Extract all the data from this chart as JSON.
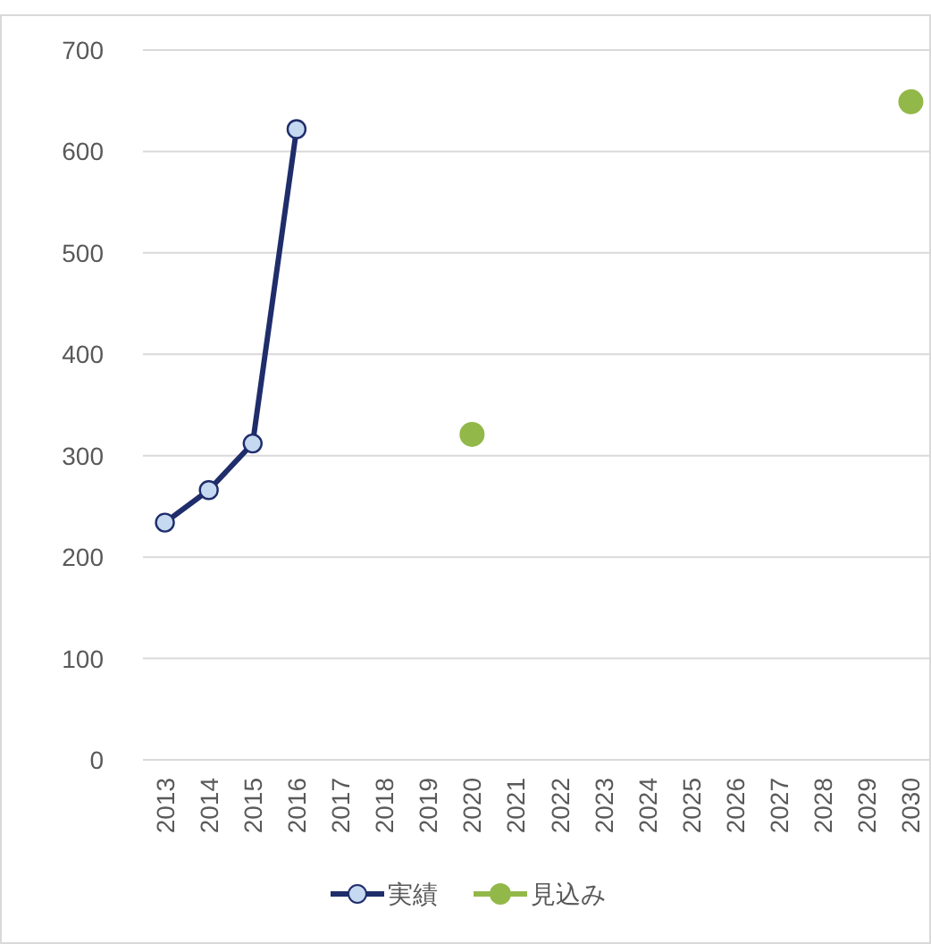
{
  "chart_data": {
    "type": "line",
    "categories": [
      "2013",
      "2014",
      "2015",
      "2016",
      "2017",
      "2018",
      "2019",
      "2020",
      "2021",
      "2022",
      "2023",
      "2024",
      "2025",
      "2026",
      "2027",
      "2028",
      "2029",
      "2030"
    ],
    "ylim": [
      0,
      700
    ],
    "yticks": [
      0,
      100,
      200,
      300,
      400,
      500,
      600,
      700
    ],
    "grid": "y",
    "legend": "bottom",
    "series": [
      {
        "name": "実績",
        "marker": "circle",
        "color": "#1f2d6b",
        "values": [
          234,
          266,
          312,
          622,
          null,
          null,
          null,
          null,
          null,
          null,
          null,
          null,
          null,
          null,
          null,
          null,
          null,
          null
        ]
      },
      {
        "name": "見込み",
        "type": "scatter",
        "marker": "circle",
        "color": "#92b84a",
        "values": [
          null,
          null,
          null,
          null,
          null,
          null,
          null,
          321,
          null,
          null,
          null,
          null,
          null,
          null,
          null,
          null,
          null,
          649
        ]
      }
    ]
  }
}
